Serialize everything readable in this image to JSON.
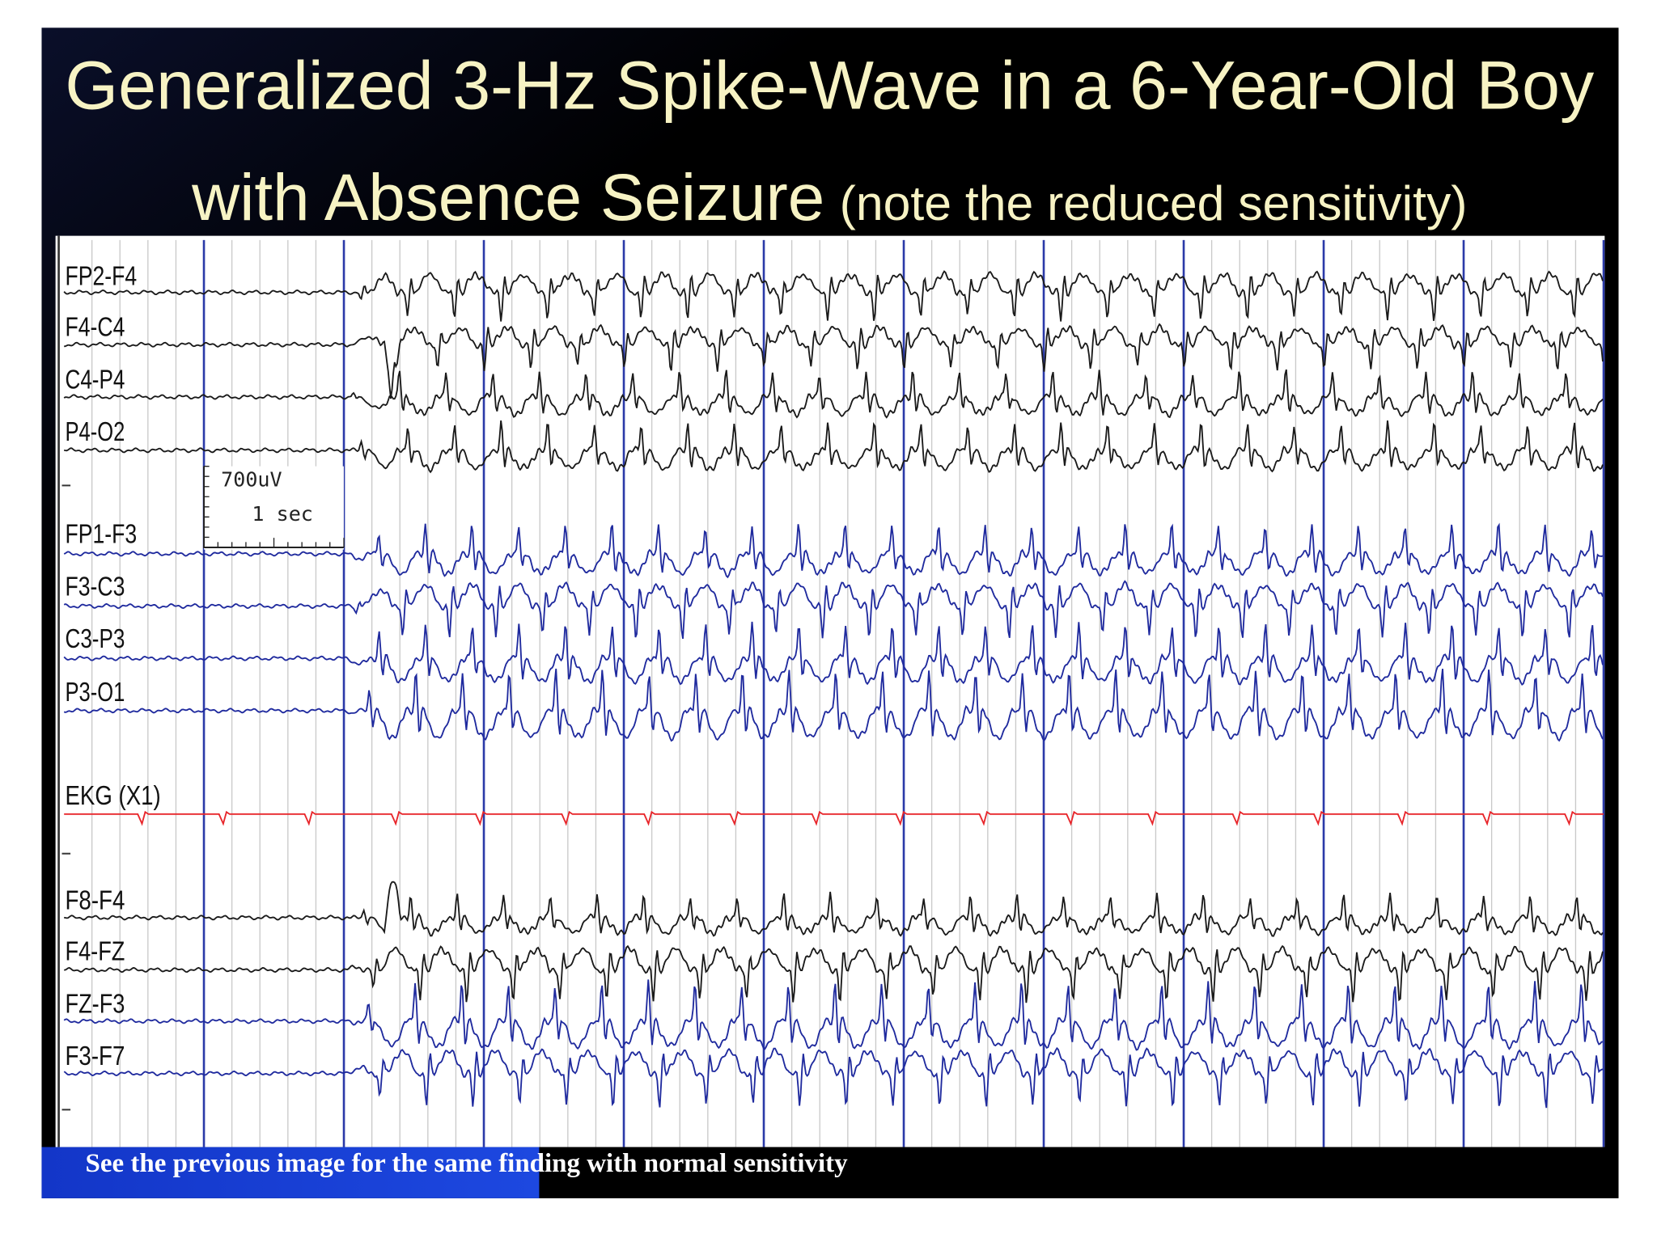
{
  "title": {
    "line1": "Generalized 3-Hz Spike-Wave in a 6-Year-Old Boy",
    "line2": "with Absence Seizure",
    "note": "(note the reduced sensitivity)"
  },
  "channels": [
    {
      "label": "FP2-F4",
      "color": "#1a1a1a"
    },
    {
      "label": "F4-C4",
      "color": "#1a1a1a"
    },
    {
      "label": "C4-P4",
      "color": "#1a1a1a"
    },
    {
      "label": "P4-O2",
      "color": "#1a1a1a"
    },
    {
      "label": "FP1-F3",
      "color": "#1f2a9e"
    },
    {
      "label": "F3-C3",
      "color": "#1f2a9e"
    },
    {
      "label": "C3-P3",
      "color": "#1f2a9e"
    },
    {
      "label": "P3-O1",
      "color": "#1f2a9e"
    },
    {
      "label": "EKG (X1)",
      "color": "#e8262b"
    },
    {
      "label": "F8-F4",
      "color": "#1a1a1a"
    },
    {
      "label": "F4-FZ",
      "color": "#1a1a1a"
    },
    {
      "label": "FZ-F3",
      "color": "#1f2a9e"
    },
    {
      "label": "F3-F7",
      "color": "#1f2a9e"
    }
  ],
  "scale": {
    "amplitude": "700uV",
    "time": "1 sec"
  },
  "footer": "See the previous image for the same finding with normal sensitivity"
}
